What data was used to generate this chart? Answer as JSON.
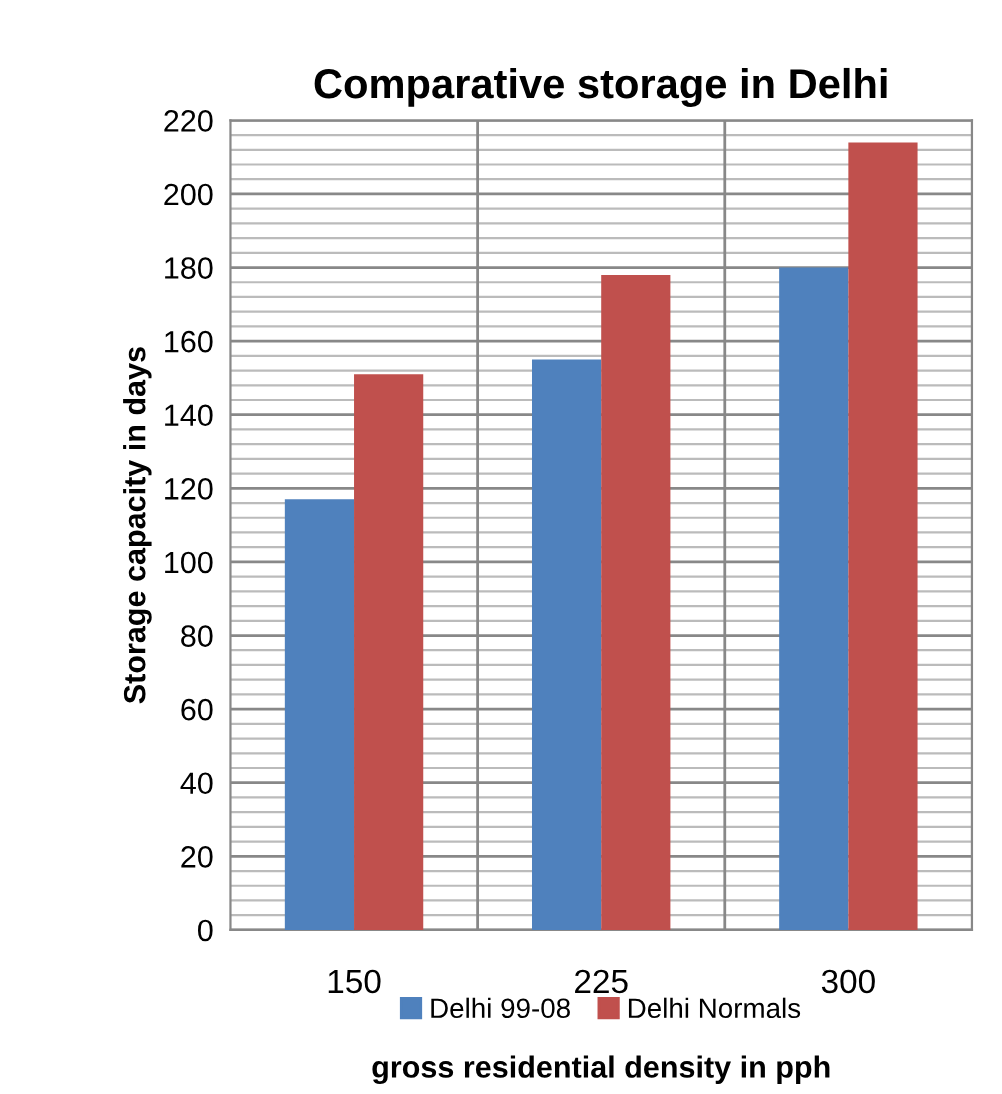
{
  "chart_data": {
    "type": "bar",
    "title": "Comparative storage in Delhi",
    "xlabel": "gross residential density in pph",
    "ylabel": "Storage capacity in days",
    "categories": [
      "150",
      "225",
      "300"
    ],
    "series": [
      {
        "name": "Delhi 99-08",
        "color": "#4f81bd",
        "values": [
          117,
          155,
          180
        ]
      },
      {
        "name": "Delhi Normals",
        "color": "#c0504d",
        "values": [
          151,
          178,
          214
        ]
      }
    ],
    "ylim": [
      0,
      220
    ],
    "yticks": [
      0,
      {
        "value": 4,
        "label": null
      },
      {
        "value": 8,
        "label": null
      },
      {
        "value": 12,
        "label": null
      },
      {
        "value": 16,
        "label": null
      },
      20,
      {
        "value": 24,
        "label": null
      },
      {
        "value": 28,
        "label": null
      },
      {
        "value": 32,
        "label": null
      },
      {
        "value": 36,
        "label": null
      },
      40,
      {
        "value": 44,
        "label": null
      },
      {
        "value": 48,
        "label": null
      },
      {
        "value": 52,
        "label": null
      },
      {
        "value": 56,
        "label": null
      },
      60,
      {
        "value": 64,
        "label": null
      },
      {
        "value": 68,
        "label": null
      },
      {
        "value": 72,
        "label": null
      },
      {
        "value": 76,
        "label": null
      },
      80,
      {
        "value": 84,
        "label": null
      },
      {
        "value": 88,
        "label": null
      },
      {
        "value": 92,
        "label": null
      },
      {
        "value": 96,
        "label": null
      },
      100,
      {
        "value": 104,
        "label": null
      },
      {
        "value": 108,
        "label": null
      },
      {
        "value": 112,
        "label": null
      },
      {
        "value": 116,
        "label": null
      },
      120,
      {
        "value": 124,
        "label": null
      },
      {
        "value": 128,
        "label": null
      },
      {
        "value": 132,
        "label": null
      },
      {
        "value": 136,
        "label": null
      },
      140,
      {
        "value": 144,
        "label": null
      },
      {
        "value": 148,
        "label": null
      },
      {
        "value": 152,
        "label": null
      },
      {
        "value": 156,
        "label": null
      },
      160,
      {
        "value": 164,
        "label": null
      },
      {
        "value": 168,
        "label": null
      },
      {
        "value": 172,
        "label": null
      },
      {
        "value": 176,
        "label": null
      },
      180,
      {
        "value": 184,
        "label": null
      },
      {
        "value": 188,
        "label": null
      },
      {
        "value": 192,
        "label": null
      },
      {
        "value": 196,
        "label": null
      },
      200,
      {
        "value": 204,
        "label": null
      },
      {
        "value": 208,
        "label": null
      },
      {
        "value": 212,
        "label": null
      },
      {
        "value": 216,
        "label": null
      },
      220
    ],
    "grid": true,
    "legend": "bottom"
  }
}
